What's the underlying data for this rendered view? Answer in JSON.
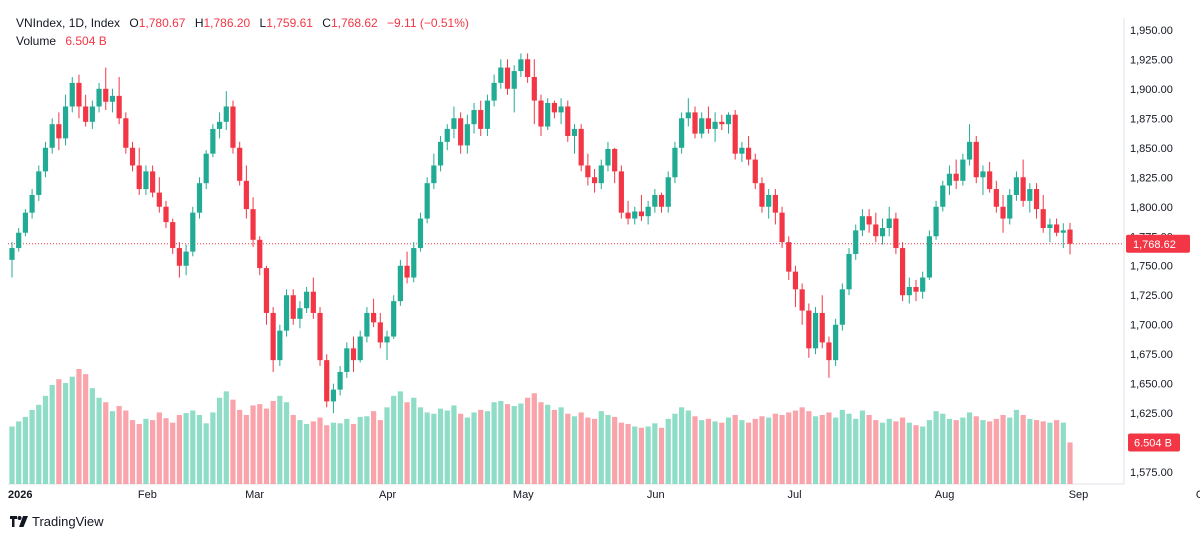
{
  "legend": {
    "symbol": "VNIndex, 1D, Index",
    "o_label": "O",
    "o_value": "1,780.67",
    "h_label": "H",
    "h_value": "1,786.20",
    "l_label": "L",
    "l_value": "1,759.61",
    "c_label": "C",
    "c_value": "1,768.62",
    "change": "−9.11 (−0.51%)",
    "volume_label": "Volume",
    "volume_value": "6.504 B"
  },
  "brand": {
    "name": "TradingView"
  },
  "colors": {
    "up": "#22AB94",
    "down": "#F23645",
    "volume_up": "#8FDDC6",
    "volume_down": "#F9A3AB",
    "last_price_bg": "#F23645",
    "volume_badge_bg": "#F23645"
  },
  "chart_data": {
    "type": "candlestick",
    "interval": "1D",
    "symbol": "VNIndex",
    "price_axis": {
      "ticks": [
        1575,
        1600,
        1625,
        1650,
        1675,
        1700,
        1725,
        1750,
        1775,
        1800,
        1825,
        1850,
        1875,
        1900,
        1925,
        1950
      ],
      "tick_labels": [
        "1,575.00",
        "1,600.00",
        "1,625.00",
        "1,650.00",
        "1,675.00",
        "1,700.00",
        "1,725.00",
        "1,750.00",
        "1,775.00",
        "1,800.00",
        "1,825.00",
        "1,850.00",
        "1,875.00",
        "1,900.00",
        "1,925.00",
        "1,950.00"
      ],
      "range": [
        1565,
        1960
      ]
    },
    "time_axis": {
      "labels": [
        {
          "text": "2026",
          "bar": 0,
          "bold": true
        },
        {
          "text": "Feb",
          "bar": 20
        },
        {
          "text": "Mar",
          "bar": 36
        },
        {
          "text": "Apr",
          "bar": 56
        },
        {
          "text": "May",
          "bar": 76
        },
        {
          "text": "Jun",
          "bar": 96
        },
        {
          "text": "Jul",
          "bar": 117
        },
        {
          "text": "Aug",
          "bar": 139
        },
        {
          "text": "Sep",
          "bar": 159
        },
        {
          "text": "Oct",
          "bar": 178
        }
      ]
    },
    "last_price": 1768.62,
    "last_price_label": "1,768.62",
    "last_volume_label": "6.504 B",
    "volume_max": 18,
    "candles": [
      [
        1755,
        1770,
        1740,
        1765,
        9.0
      ],
      [
        1765,
        1782,
        1762,
        1778,
        9.8
      ],
      [
        1778,
        1798,
        1775,
        1795,
        10.5
      ],
      [
        1795,
        1815,
        1790,
        1810,
        11.6
      ],
      [
        1810,
        1835,
        1805,
        1830,
        12.4
      ],
      [
        1830,
        1855,
        1825,
        1850,
        13.8
      ],
      [
        1850,
        1875,
        1845,
        1870,
        15.5
      ],
      [
        1870,
        1880,
        1848,
        1858,
        16.4
      ],
      [
        1858,
        1895,
        1852,
        1885,
        15.8
      ],
      [
        1885,
        1910,
        1880,
        1905,
        16.8
      ],
      [
        1905,
        1912,
        1875,
        1885,
        18.0
      ],
      [
        1885,
        1895,
        1868,
        1872,
        17.2
      ],
      [
        1872,
        1890,
        1866,
        1885,
        15.0
      ],
      [
        1885,
        1905,
        1880,
        1900,
        13.5
      ],
      [
        1900,
        1918,
        1882,
        1889,
        12.8
      ],
      [
        1889,
        1900,
        1880,
        1894,
        11.4
      ],
      [
        1894,
        1910,
        1870,
        1875,
        12.2
      ],
      [
        1875,
        1880,
        1845,
        1850,
        11.5
      ],
      [
        1850,
        1855,
        1830,
        1835,
        10.0
      ],
      [
        1835,
        1850,
        1810,
        1815,
        9.4
      ],
      [
        1815,
        1835,
        1810,
        1830,
        10.2
      ],
      [
        1830,
        1835,
        1808,
        1812,
        10.0
      ],
      [
        1812,
        1825,
        1795,
        1800,
        11.2
      ],
      [
        1800,
        1805,
        1782,
        1787,
        10.3
      ],
      [
        1787,
        1790,
        1760,
        1765,
        9.6
      ],
      [
        1765,
        1770,
        1740,
        1750,
        10.8
      ],
      [
        1750,
        1768,
        1742,
        1762,
        11.1
      ],
      [
        1762,
        1800,
        1758,
        1795,
        11.5
      ],
      [
        1795,
        1825,
        1790,
        1820,
        10.8
      ],
      [
        1820,
        1848,
        1815,
        1845,
        9.5
      ],
      [
        1845,
        1870,
        1842,
        1866,
        11.2
      ],
      [
        1866,
        1880,
        1858,
        1872,
        13.5
      ],
      [
        1872,
        1898,
        1865,
        1885,
        14.5
      ],
      [
        1885,
        1890,
        1845,
        1850,
        13.2
      ],
      [
        1850,
        1855,
        1818,
        1822,
        11.6
      ],
      [
        1822,
        1835,
        1790,
        1798,
        10.8
      ],
      [
        1798,
        1808,
        1766,
        1772,
        12.3
      ],
      [
        1772,
        1775,
        1742,
        1748,
        12.5
      ],
      [
        1748,
        1750,
        1700,
        1710,
        11.8
      ],
      [
        1710,
        1715,
        1660,
        1670,
        13.0
      ],
      [
        1670,
        1700,
        1665,
        1695,
        13.8
      ],
      [
        1695,
        1730,
        1690,
        1725,
        12.8
      ],
      [
        1725,
        1730,
        1700,
        1705,
        10.8
      ],
      [
        1705,
        1720,
        1697,
        1714,
        10.0
      ],
      [
        1714,
        1732,
        1710,
        1728,
        9.4
      ],
      [
        1728,
        1740,
        1705,
        1710,
        9.8
      ],
      [
        1710,
        1715,
        1665,
        1670,
        10.4
      ],
      [
        1670,
        1675,
        1630,
        1635,
        9.2
      ],
      [
        1635,
        1650,
        1625,
        1645,
        9.6
      ],
      [
        1645,
        1665,
        1640,
        1660,
        9.5
      ],
      [
        1660,
        1685,
        1655,
        1680,
        10.2
      ],
      [
        1680,
        1690,
        1660,
        1670,
        9.4
      ],
      [
        1670,
        1695,
        1668,
        1690,
        10.5
      ],
      [
        1690,
        1715,
        1685,
        1710,
        10.6
      ],
      [
        1710,
        1722,
        1698,
        1702,
        11.4
      ],
      [
        1702,
        1710,
        1680,
        1685,
        10.0
      ],
      [
        1685,
        1695,
        1670,
        1690,
        12.0
      ],
      [
        1690,
        1725,
        1688,
        1720,
        13.8
      ],
      [
        1720,
        1755,
        1716,
        1750,
        14.5
      ],
      [
        1750,
        1762,
        1735,
        1740,
        12.8
      ],
      [
        1740,
        1770,
        1736,
        1765,
        13.5
      ],
      [
        1765,
        1795,
        1762,
        1790,
        12.0
      ],
      [
        1790,
        1825,
        1786,
        1820,
        11.2
      ],
      [
        1820,
        1845,
        1815,
        1835,
        11.0
      ],
      [
        1835,
        1860,
        1830,
        1855,
        11.8
      ],
      [
        1855,
        1870,
        1848,
        1866,
        11.5
      ],
      [
        1866,
        1885,
        1858,
        1875,
        12.3
      ],
      [
        1875,
        1880,
        1845,
        1852,
        11.0
      ],
      [
        1852,
        1878,
        1845,
        1870,
        10.4
      ],
      [
        1870,
        1888,
        1862,
        1882,
        11.2
      ],
      [
        1882,
        1890,
        1860,
        1866,
        11.6
      ],
      [
        1866,
        1895,
        1860,
        1890,
        11.4
      ],
      [
        1890,
        1912,
        1885,
        1905,
        12.8
      ],
      [
        1905,
        1925,
        1900,
        1918,
        13.0
      ],
      [
        1918,
        1925,
        1895,
        1900,
        12.5
      ],
      [
        1900,
        1920,
        1880,
        1915,
        12.2
      ],
      [
        1915,
        1930,
        1910,
        1925,
        12.6
      ],
      [
        1925,
        1930,
        1905,
        1910,
        13.5
      ],
      [
        1910,
        1925,
        1870,
        1890,
        14.2
      ],
      [
        1890,
        1895,
        1860,
        1868,
        12.8
      ],
      [
        1868,
        1892,
        1865,
        1888,
        12.4
      ],
      [
        1888,
        1890,
        1875,
        1880,
        11.6
      ],
      [
        1880,
        1892,
        1870,
        1885,
        12.0
      ],
      [
        1885,
        1890,
        1855,
        1860,
        11.0
      ],
      [
        1860,
        1870,
        1845,
        1866,
        10.6
      ],
      [
        1866,
        1870,
        1830,
        1835,
        11.2
      ],
      [
        1835,
        1845,
        1818,
        1825,
        10.4
      ],
      [
        1825,
        1832,
        1812,
        1820,
        10.2
      ],
      [
        1820,
        1840,
        1815,
        1835,
        11.4
      ],
      [
        1835,
        1855,
        1830,
        1849,
        10.8
      ],
      [
        1849,
        1850,
        1820,
        1830,
        10.5
      ],
      [
        1830,
        1835,
        1790,
        1795,
        9.6
      ],
      [
        1795,
        1805,
        1785,
        1790,
        9.4
      ],
      [
        1790,
        1800,
        1785,
        1796,
        9.0
      ],
      [
        1796,
        1810,
        1788,
        1792,
        8.8
      ],
      [
        1792,
        1805,
        1785,
        1800,
        9.0
      ],
      [
        1800,
        1815,
        1795,
        1810,
        9.5
      ],
      [
        1810,
        1812,
        1795,
        1800,
        8.8
      ],
      [
        1800,
        1830,
        1795,
        1825,
        10.2
      ],
      [
        1825,
        1855,
        1820,
        1850,
        11.0
      ],
      [
        1850,
        1880,
        1845,
        1875,
        12.0
      ],
      [
        1875,
        1892,
        1868,
        1880,
        11.5
      ],
      [
        1880,
        1885,
        1858,
        1862,
        10.6
      ],
      [
        1862,
        1880,
        1858,
        1875,
        10.0
      ],
      [
        1875,
        1885,
        1862,
        1866,
        10.2
      ],
      [
        1866,
        1880,
        1855,
        1872,
        9.8
      ],
      [
        1872,
        1878,
        1865,
        1870,
        9.6
      ],
      [
        1870,
        1880,
        1862,
        1878,
        10.4
      ],
      [
        1878,
        1882,
        1840,
        1845,
        10.8
      ],
      [
        1845,
        1855,
        1838,
        1850,
        10.0
      ],
      [
        1850,
        1860,
        1835,
        1840,
        9.6
      ],
      [
        1840,
        1845,
        1815,
        1820,
        10.2
      ],
      [
        1820,
        1825,
        1795,
        1800,
        10.6
      ],
      [
        1800,
        1815,
        1790,
        1810,
        10.4
      ],
      [
        1810,
        1815,
        1785,
        1795,
        11.0
      ],
      [
        1795,
        1800,
        1765,
        1770,
        10.8
      ],
      [
        1770,
        1775,
        1738,
        1745,
        11.2
      ],
      [
        1745,
        1750,
        1715,
        1730,
        11.5
      ],
      [
        1730,
        1735,
        1700,
        1712,
        12.0
      ],
      [
        1712,
        1718,
        1672,
        1680,
        11.4
      ],
      [
        1680,
        1715,
        1675,
        1710,
        10.6
      ],
      [
        1710,
        1725,
        1680,
        1685,
        10.8
      ],
      [
        1685,
        1690,
        1655,
        1670,
        11.2
      ],
      [
        1670,
        1705,
        1665,
        1700,
        10.4
      ],
      [
        1700,
        1735,
        1695,
        1730,
        11.6
      ],
      [
        1730,
        1765,
        1725,
        1760,
        11.0
      ],
      [
        1760,
        1785,
        1755,
        1780,
        10.2
      ],
      [
        1780,
        1798,
        1775,
        1792,
        11.5
      ],
      [
        1792,
        1798,
        1778,
        1785,
        10.8
      ],
      [
        1785,
        1795,
        1770,
        1775,
        10.0
      ],
      [
        1775,
        1790,
        1768,
        1782,
        9.6
      ],
      [
        1782,
        1800,
        1775,
        1790,
        10.2
      ],
      [
        1790,
        1795,
        1760,
        1765,
        9.8
      ],
      [
        1765,
        1770,
        1720,
        1725,
        10.4
      ],
      [
        1725,
        1740,
        1718,
        1732,
        9.6
      ],
      [
        1732,
        1738,
        1720,
        1728,
        9.2
      ],
      [
        1728,
        1745,
        1722,
        1740,
        9.0
      ],
      [
        1740,
        1780,
        1738,
        1775,
        10.0
      ],
      [
        1775,
        1805,
        1772,
        1800,
        11.4
      ],
      [
        1800,
        1822,
        1796,
        1818,
        11.0
      ],
      [
        1818,
        1835,
        1810,
        1828,
        10.2
      ],
      [
        1828,
        1840,
        1815,
        1822,
        10.0
      ],
      [
        1822,
        1845,
        1818,
        1840,
        10.4
      ],
      [
        1840,
        1870,
        1835,
        1855,
        11.2
      ],
      [
        1855,
        1860,
        1820,
        1825,
        10.6
      ],
      [
        1825,
        1835,
        1810,
        1830,
        10.0
      ],
      [
        1830,
        1838,
        1812,
        1815,
        9.8
      ],
      [
        1815,
        1822,
        1795,
        1800,
        10.2
      ],
      [
        1800,
        1810,
        1778,
        1790,
        10.8
      ],
      [
        1790,
        1815,
        1785,
        1810,
        10.4
      ],
      [
        1810,
        1830,
        1805,
        1825,
        11.6
      ],
      [
        1825,
        1840,
        1800,
        1805,
        10.8
      ],
      [
        1805,
        1820,
        1795,
        1815,
        10.2
      ],
      [
        1815,
        1820,
        1790,
        1798,
        10.0
      ],
      [
        1798,
        1810,
        1778,
        1782,
        9.8
      ],
      [
        1782,
        1790,
        1770,
        1785,
        9.6
      ],
      [
        1785,
        1790,
        1775,
        1778,
        10.0
      ],
      [
        1778,
        1786,
        1765,
        1780,
        9.6
      ],
      [
        1780.67,
        1786.2,
        1759.61,
        1768.62,
        6.5
      ]
    ]
  }
}
